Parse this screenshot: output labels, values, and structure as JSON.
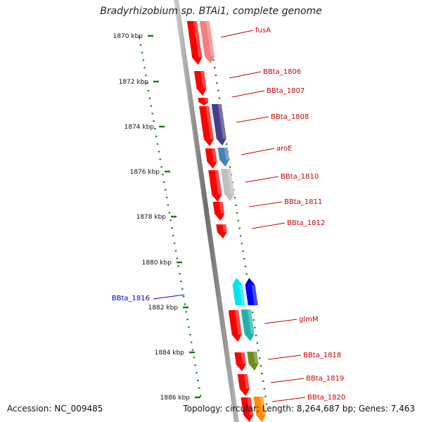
{
  "title": "Bradyrhizobium sp. BTAi1, complete genome",
  "accession": "Accession: NC_009485",
  "topology": "Topology: circular; Length: 8,264,687 bp; Genes: 7,463",
  "ticks": [
    "1870 kbp",
    "1872 kbp",
    "1874 kbp",
    "1876 kbp",
    "1878 kbp",
    "1880 kbp",
    "1882 kbp",
    "1884 kbp",
    "1886 kbp"
  ],
  "genes": [
    {
      "label": "fusA",
      "strand": "forward",
      "color": "#f08080"
    },
    {
      "label": "BBta_1806",
      "strand": "forward",
      "color": "#ff0000"
    },
    {
      "label": "BBta_1807",
      "strand": "forward",
      "color": "#ff0000"
    },
    {
      "label": "BBta_1808",
      "strand": "forward",
      "color": "#483d8b"
    },
    {
      "label": "aroE",
      "strand": "forward",
      "color": "#4682b4"
    },
    {
      "label": "BBta_1810",
      "strand": "forward",
      "color": "#c0c0c0"
    },
    {
      "label": "BBta_1811",
      "strand": "forward",
      "color": "#ff0000"
    },
    {
      "label": "BBta_1812",
      "strand": "forward",
      "color": "#ff0000"
    },
    {
      "label": "BBta_1816",
      "strand": "reverse",
      "color": "#0000ff"
    },
    {
      "label": "glmM",
      "strand": "forward",
      "color": "#20b2aa"
    },
    {
      "label": "BBta_1818",
      "strand": "forward",
      "color": "#6b8e23"
    },
    {
      "label": "BBta_1819",
      "strand": "forward",
      "color": "#ff0000"
    },
    {
      "label": "BBta_1820",
      "strand": "forward",
      "color": "#ff8c00"
    }
  ],
  "colors": {
    "forward_label": "#cc0000",
    "reverse_label": "#0000cc",
    "tick": "#1a7a1a",
    "backbone": "#808080"
  }
}
